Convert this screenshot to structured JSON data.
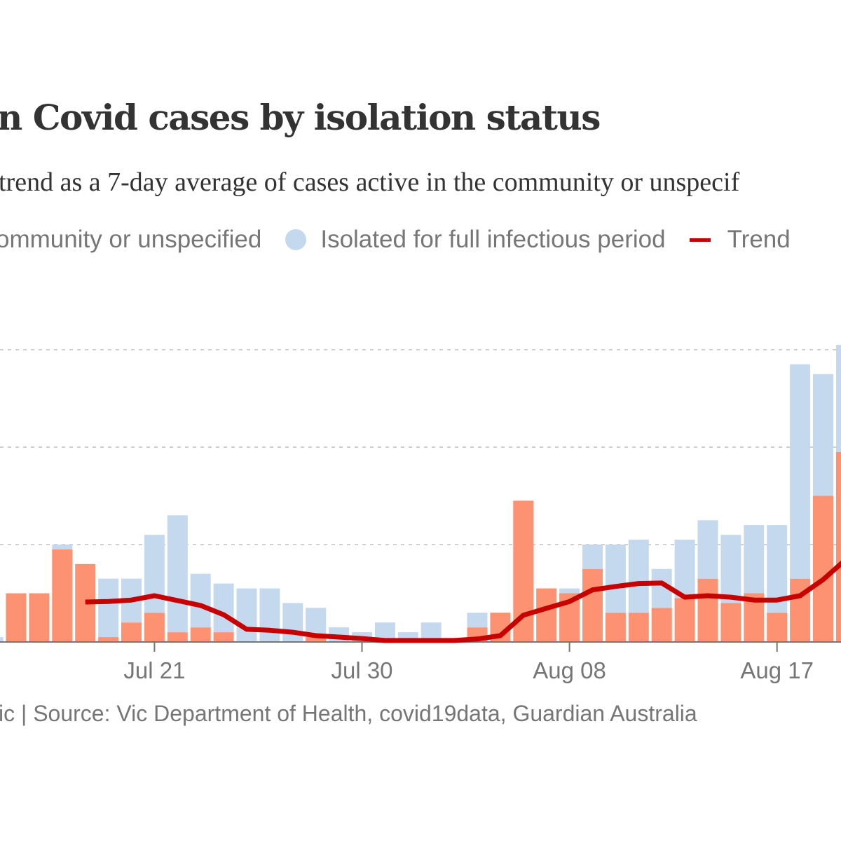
{
  "chart_data": {
    "type": "bar",
    "stacked": true,
    "title": "n Covid cases by isolation status",
    "subtitle": "trend as a 7-day average of cases active in the community or unspecif",
    "source": "ic | Source: Vic Department of Health, covid19data, Guardian Australia",
    "legend": {
      "placement": "top-left",
      "items": [
        {
          "label": "ommunity or unspecified",
          "color": "#fc9272"
        },
        {
          "label": "Isolated for full infectious period",
          "color": "#c5d9ee"
        },
        {
          "label": "Trend",
          "color": "#c70000"
        }
      ]
    },
    "categories": [
      "Jul 14",
      "Jul 15",
      "Jul 16",
      "Jul 17",
      "Jul 18",
      "Jul 19",
      "Jul 20",
      "Jul 21",
      "Jul 22",
      "Jul 23",
      "Jul 24",
      "Jul 25",
      "Jul 26",
      "Jul 27",
      "Jul 28",
      "Jul 29",
      "Jul 30",
      "Jul 31",
      "Aug 01",
      "Aug 02",
      "Aug 03",
      "Aug 04",
      "Aug 05",
      "Aug 06",
      "Aug 07",
      "Aug 08",
      "Aug 09",
      "Aug 10",
      "Aug 11",
      "Aug 12",
      "Aug 13",
      "Aug 14",
      "Aug 15",
      "Aug 16",
      "Aug 17",
      "Aug 18",
      "Aug 19",
      "Aug 20"
    ],
    "x_tick_labels": [
      "Jul 21",
      "Jul 30",
      "Aug 08",
      "Aug 17"
    ],
    "series": [
      {
        "name": "Community or unspecified",
        "values": [
          0,
          10,
          10,
          19,
          16,
          1,
          4,
          6,
          2,
          3,
          2,
          0,
          0,
          0,
          1,
          0,
          0,
          0,
          0,
          0,
          0,
          3,
          6,
          29,
          11,
          10,
          15,
          6,
          6,
          7,
          9,
          13,
          8,
          10,
          6,
          13,
          30,
          39
        ]
      },
      {
        "name": "Isolated for full infectious period",
        "values": [
          1,
          0,
          0,
          1,
          0,
          12,
          9,
          16,
          24,
          11,
          10,
          11,
          11,
          8,
          6,
          3,
          2,
          4,
          2,
          4,
          0,
          3,
          0,
          0,
          0,
          1,
          5,
          14,
          15,
          8,
          12,
          12,
          14,
          14,
          18,
          44,
          25,
          22
        ]
      },
      {
        "name": "Trend",
        "type": "line",
        "values": [
          null,
          null,
          null,
          null,
          8.2,
          8.3,
          8.6,
          9.5,
          8.5,
          7.5,
          5.6,
          2.6,
          2.4,
          2.0,
          1.3,
          1.0,
          0.7,
          0.3,
          0.3,
          0.3,
          0.3,
          0.6,
          1.3,
          5.5,
          6.9,
          8.3,
          10.7,
          11.4,
          12.0,
          12.1,
          9.2,
          9.5,
          9.2,
          8.6,
          8.6,
          9.5,
          12.8,
          17.0
        ]
      }
    ],
    "y_gridlines": [
      20,
      40,
      60
    ],
    "grid": true,
    "ylim": [
      0,
      62
    ]
  }
}
